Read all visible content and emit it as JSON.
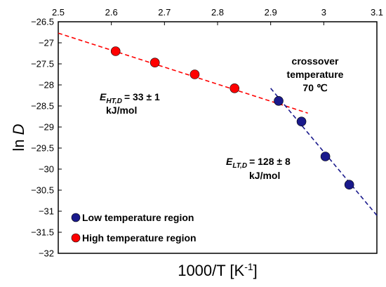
{
  "chart_data": {
    "type": "scatter",
    "xlabel": "1000/T [K-1]",
    "ylabel": "ln D",
    "xlim": [
      2.5,
      3.1
    ],
    "ylim": [
      -32,
      -26.5
    ],
    "x_ticks": [
      "2.5",
      "2.6",
      "2.7",
      "2.8",
      "2.9",
      "3",
      "3.1"
    ],
    "y_ticks": [
      "-26.5",
      "-27",
      "-27.5",
      "-28",
      "-28.5",
      "-29",
      "-29.5",
      "-30",
      "-30.5",
      "-31",
      "-31.5",
      "-32"
    ],
    "x_axis_position": "top",
    "grid": false,
    "legend_position": "bottom-left",
    "series": [
      {
        "name": "Low temperature region",
        "color": "#1a1a8c",
        "points": [
          {
            "x": 2.915,
            "y": -28.38
          },
          {
            "x": 2.958,
            "y": -28.87
          },
          {
            "x": 3.003,
            "y": -29.7
          },
          {
            "x": 3.048,
            "y": -30.37
          }
        ]
      },
      {
        "name": "High temperature region",
        "color": "#ff0000",
        "points": [
          {
            "x": 2.608,
            "y": -27.2
          },
          {
            "x": 2.682,
            "y": -27.47
          },
          {
            "x": 2.757,
            "y": -27.75
          },
          {
            "x": 2.832,
            "y": -28.08
          }
        ]
      }
    ],
    "fit_lines": [
      {
        "series": "High temperature region",
        "color": "#ff0000",
        "from": [
          2.5,
          -26.77
        ],
        "to": [
          2.97,
          -28.67
        ]
      },
      {
        "series": "Low temperature region",
        "color": "#1a1a8c",
        "from": [
          2.9,
          -28.08
        ],
        "to": [
          3.1,
          -31.1
        ]
      }
    ],
    "annotations": {
      "ht_energy": {
        "symbol": "E",
        "subscript": "HT,D",
        "value": "= 33 ± 1",
        "unit": "kJ/mol"
      },
      "lt_energy": {
        "symbol": "E",
        "subscript": "LT,D",
        "value": "= 128 ± 8",
        "unit": "kJ/mol"
      },
      "crossover": {
        "line1": "crossover",
        "line2": "temperature",
        "line3": "70 ℃"
      }
    }
  }
}
